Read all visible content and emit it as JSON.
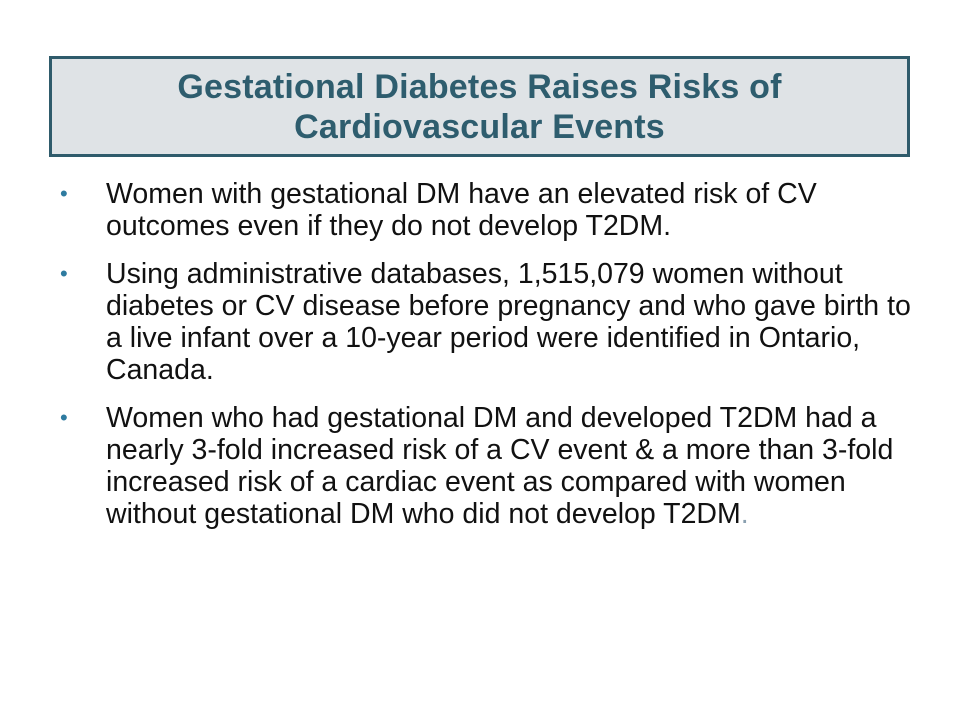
{
  "slide": {
    "title": "Gestational Diabetes Raises Risks of Cardiovascular Events",
    "bullet_marker": "•",
    "bullets": [
      "Women with gestational DM have an elevated risk of CV outcomes even if they do not develop T2DM.",
      "Using administrative databases, 1,515,079 women without diabetes or CV disease before pregnancy and who gave birth to a live infant over a 10-year period were identified in Ontario, Canada.",
      "Women who had gestational DM and developed T2DM had a nearly 3-fold increased risk of a CV event & a more than 3-fold increased risk of a cardiac event as compared with women without gestational DM who did not develop T2DM"
    ],
    "trailing_punctuation": "."
  },
  "colors": {
    "title_text": "#2e5d6e",
    "title_background": "#dfe3e6",
    "title_border": "#2f5b6b",
    "bullet_marker": "#2e7ba0",
    "body_text": "#111111"
  }
}
